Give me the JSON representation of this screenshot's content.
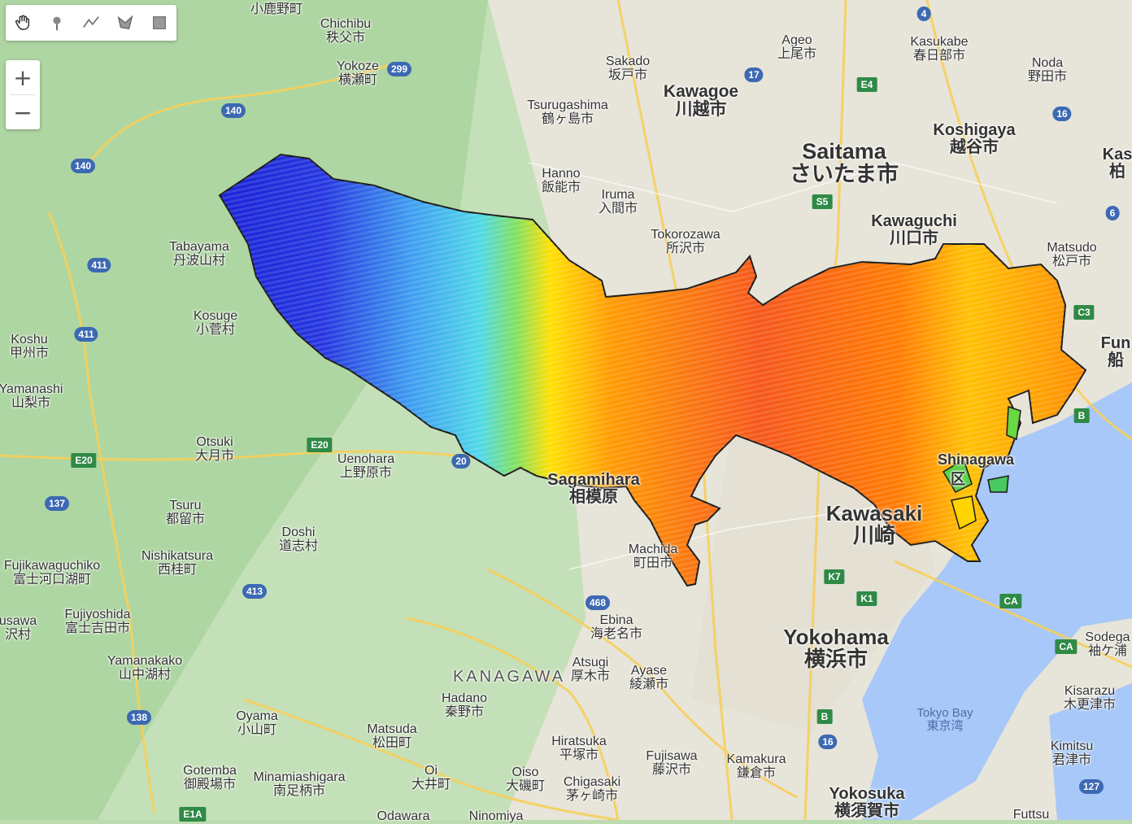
{
  "toolbar": {
    "tools": [
      {
        "icon": "hand-icon"
      },
      {
        "icon": "marker-icon"
      },
      {
        "icon": "line-icon"
      },
      {
        "icon": "polygon-icon"
      },
      {
        "icon": "rectangle-icon"
      }
    ]
  },
  "zoom": {
    "in_label": "+",
    "out_label": "−"
  },
  "colors": {
    "boundary": "#1a1a1a",
    "water": "#a7c8f8",
    "land": "#bcdcb0",
    "urban": "#e6e2d8",
    "road": "#f7cf5a",
    "gradient": [
      "#1a22d8",
      "#3c9df0",
      "#4fd8e8",
      "#ffe000",
      "#ff8a00",
      "#f24a10"
    ]
  },
  "places": [
    {
      "en": "Chichibu",
      "jp": "秩父市"
    },
    {
      "en": "",
      "jp": "小鹿野町"
    },
    {
      "en": "Yokoze",
      "jp": "横瀬町"
    },
    {
      "en": "Sakado",
      "jp": "坂戸市"
    },
    {
      "en": "Tsurugashima",
      "jp": "鶴ヶ島市"
    },
    {
      "en": "Kawagoe",
      "jp": "川越市"
    },
    {
      "en": "Ageo",
      "jp": "上尾市"
    },
    {
      "en": "Kasukabe",
      "jp": "春日部市"
    },
    {
      "en": "Noda",
      "jp": "野田市"
    },
    {
      "en": "Koshigaya",
      "jp": "越谷市"
    },
    {
      "en": "Saitama",
      "jp": "さいたま市"
    },
    {
      "en": "Hanno",
      "jp": "飯能市"
    },
    {
      "en": "Iruma",
      "jp": "入間市"
    },
    {
      "en": "Tokorozawa",
      "jp": "所沢市"
    },
    {
      "en": "Kawaguchi",
      "jp": "川口市"
    },
    {
      "en": "Matsudo",
      "jp": "松戸市"
    },
    {
      "en": "Tabayama",
      "jp": "丹波山村"
    },
    {
      "en": "Kosuge",
      "jp": "小菅村"
    },
    {
      "en": "Koshu",
      "jp": "甲州市"
    },
    {
      "en": "Yamanashi",
      "jp": "山梨市"
    },
    {
      "en": "Otsuki",
      "jp": "大月市"
    },
    {
      "en": "Uenohara",
      "jp": "上野原市"
    },
    {
      "en": "Tsuru",
      "jp": "都留市"
    },
    {
      "en": "Doshi",
      "jp": "道志村"
    },
    {
      "en": "Nishikatsura",
      "jp": "西桂町"
    },
    {
      "en": "Fujikawaguchiko",
      "jp": "富士河口湖町"
    },
    {
      "en": "Fujiyoshida",
      "jp": "富士吉田市"
    },
    {
      "en": "Yamanakako",
      "jp": "山中湖村"
    },
    {
      "en": "Oyama",
      "jp": "小山町"
    },
    {
      "en": "Gotemba",
      "jp": "御殿場市"
    },
    {
      "en": "Minamiashigara",
      "jp": "南足柄市"
    },
    {
      "en": "Matsuda",
      "jp": "松田町"
    },
    {
      "en": "Hadano",
      "jp": "秦野市"
    },
    {
      "en": "Atsugi",
      "jp": "厚木市"
    },
    {
      "en": "Ebina",
      "jp": "海老名市"
    },
    {
      "en": "Ayase",
      "jp": "綾瀬市"
    },
    {
      "en": "Hiratsuka",
      "jp": "平塚市"
    },
    {
      "en": "Oiso",
      "jp": "大磯町"
    },
    {
      "en": "Chigasaki",
      "jp": "茅ヶ崎市"
    },
    {
      "en": "Fujisawa",
      "jp": "藤沢市"
    },
    {
      "en": "Kamakura",
      "jp": "鎌倉市"
    },
    {
      "en": "Yokohama",
      "jp": "横浜市"
    },
    {
      "en": "Yokosuka",
      "jp": "横須賀市"
    },
    {
      "en": "Kisarazu",
      "jp": "木更津市"
    },
    {
      "en": "Kimitsu",
      "jp": "君津市"
    },
    {
      "en": "Sodega",
      "jp": "袖ケ浦"
    },
    {
      "en": "Oi",
      "jp": "大井町"
    },
    {
      "en": "Sagamihara",
      "jp": "相模原"
    },
    {
      "en": "Machida",
      "jp": "町田市"
    },
    {
      "en": "Kawasaki",
      "jp": "川崎"
    }
  ],
  "partial_labels": [
    "Kas",
    "柏",
    "Fun",
    "船",
    "Ninomiya",
    "Odawara",
    "Futtsu",
    "usawa",
    "沢村",
    "Shinagawa",
    "区"
  ],
  "region_label": "KANAGAWA",
  "bay_label": {
    "en": "Tokyo Bay",
    "jp": "東京湾"
  },
  "shields": [
    {
      "text": "299",
      "kind": "route"
    },
    {
      "text": "140",
      "kind": "route"
    },
    {
      "text": "140",
      "kind": "route"
    },
    {
      "text": "411",
      "kind": "route"
    },
    {
      "text": "411",
      "kind": "route"
    },
    {
      "text": "137",
      "kind": "route"
    },
    {
      "text": "413",
      "kind": "route"
    },
    {
      "text": "138",
      "kind": "route"
    },
    {
      "text": "468",
      "kind": "route"
    },
    {
      "text": "17",
      "kind": "route"
    },
    {
      "text": "16",
      "kind": "route"
    },
    {
      "text": "4",
      "kind": "route"
    },
    {
      "text": "6",
      "kind": "route"
    },
    {
      "text": "16",
      "kind": "route"
    },
    {
      "text": "20",
      "kind": "route"
    },
    {
      "text": "127",
      "kind": "route"
    },
    {
      "text": "E4",
      "kind": "exp"
    },
    {
      "text": "E20",
      "kind": "exp"
    },
    {
      "text": "E20",
      "kind": "exp"
    },
    {
      "text": "E1A",
      "kind": "exp"
    },
    {
      "text": "S5",
      "kind": "exp"
    },
    {
      "text": "C3",
      "kind": "exp"
    },
    {
      "text": "K7",
      "kind": "exp"
    },
    {
      "text": "K1",
      "kind": "exp"
    },
    {
      "text": "CA",
      "kind": "exp"
    },
    {
      "text": "CA",
      "kind": "exp"
    },
    {
      "text": "B",
      "kind": "exp"
    },
    {
      "text": "B",
      "kind": "exp"
    }
  ]
}
